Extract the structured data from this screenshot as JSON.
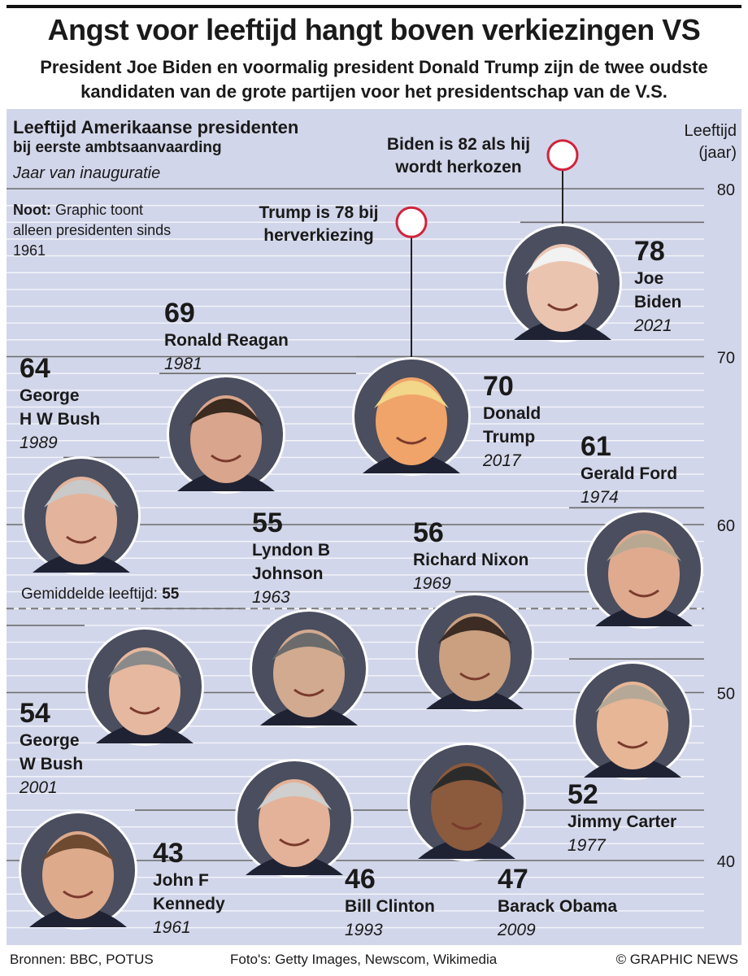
{
  "header": {
    "title": "Angst voor leeftijd hangt boven verkiezingen VS",
    "subtitle": "President Joe Biden en voormalig president Donald Trump zijn de twee oudste kandidaten van de grote partijen voor het presidentschap van de V.S."
  },
  "chart_head": {
    "title_line1": "Leeftijd Amerikaanse presidenten",
    "title_line2": "bij eerste ambtsaanvaarding",
    "subtitle": "Jaar van inauguratie",
    "note_label": "Noot:",
    "note_text": "Graphic toont alleen presidenten sinds 1961",
    "ylabel_line1": "Leeftijd",
    "ylabel_line2": "(jaar)",
    "average_label": "Gemiddelde leeftijd:",
    "average_value": "55"
  },
  "callouts": {
    "biden": "Biden is 82 als hij wordt herkozen",
    "trump": "Trump is 78 bij herverkiezing"
  },
  "footer": {
    "sources": "Bronnen: BBC, POTUS",
    "photos": "Foto's: Getty Images, Newscom, Wikimedia",
    "copyright": "© GRAPHIC NEWS"
  },
  "colors": {
    "background": "#d2d6ea",
    "gridline": "#f4f5fb",
    "accent_line": "#6b6b6b",
    "callout_ring": "#d0233c"
  },
  "chart_data": {
    "type": "scatter",
    "y_label": "Leeftijd (jaar)",
    "y_ticks": [
      40,
      50,
      60,
      70,
      80
    ],
    "average": 55,
    "callouts": [
      {
        "name": "Joe Biden",
        "age": 82
      },
      {
        "name": "Donald Trump",
        "age": 78
      }
    ],
    "presidents": [
      {
        "id": "biden",
        "age": 78,
        "age_label": "78",
        "name_lines": [
          "Joe",
          "Biden"
        ],
        "year": "2021",
        "icon": "portrait-biden"
      },
      {
        "id": "trump",
        "age": 70,
        "age_label": "70",
        "name_lines": [
          "Donald",
          "Trump"
        ],
        "year": "2017",
        "icon": "portrait-trump"
      },
      {
        "id": "reagan",
        "age": 69,
        "age_label": "69",
        "name_lines": [
          "Ronald Reagan"
        ],
        "year": "1981",
        "icon": "portrait-reagan"
      },
      {
        "id": "bush-sr",
        "age": 64,
        "age_label": "64",
        "name_lines": [
          "George",
          "H W Bush"
        ],
        "year": "1989",
        "icon": "portrait-bush-sr"
      },
      {
        "id": "ford",
        "age": 61,
        "age_label": "61",
        "name_lines": [
          "Gerald Ford"
        ],
        "year": "1974",
        "icon": "portrait-ford"
      },
      {
        "id": "nixon",
        "age": 56,
        "age_label": "56",
        "name_lines": [
          "Richard Nixon"
        ],
        "year": "1969",
        "icon": "portrait-nixon"
      },
      {
        "id": "johnson",
        "age": 55,
        "age_label": "55",
        "name_lines": [
          "Lyndon B",
          "Johnson"
        ],
        "year": "1963",
        "icon": "portrait-johnson"
      },
      {
        "id": "bush-jr",
        "age": 54,
        "age_label": "54",
        "name_lines": [
          "George",
          "W Bush"
        ],
        "year": "2001",
        "icon": "portrait-bush-jr"
      },
      {
        "id": "carter",
        "age": 52,
        "age_label": "52",
        "name_lines": [
          "Jimmy Carter"
        ],
        "year": "1977",
        "icon": "portrait-carter"
      },
      {
        "id": "obama",
        "age": 47,
        "age_label": "47",
        "name_lines": [
          "Barack Obama"
        ],
        "year": "2009",
        "icon": "portrait-obama"
      },
      {
        "id": "clinton",
        "age": 46,
        "age_label": "46",
        "name_lines": [
          "Bill Clinton"
        ],
        "year": "1993",
        "icon": "portrait-clinton"
      },
      {
        "id": "kennedy",
        "age": 43,
        "age_label": "43",
        "name_lines": [
          "John F",
          "Kennedy"
        ],
        "year": "1961",
        "icon": "portrait-kennedy"
      }
    ]
  }
}
